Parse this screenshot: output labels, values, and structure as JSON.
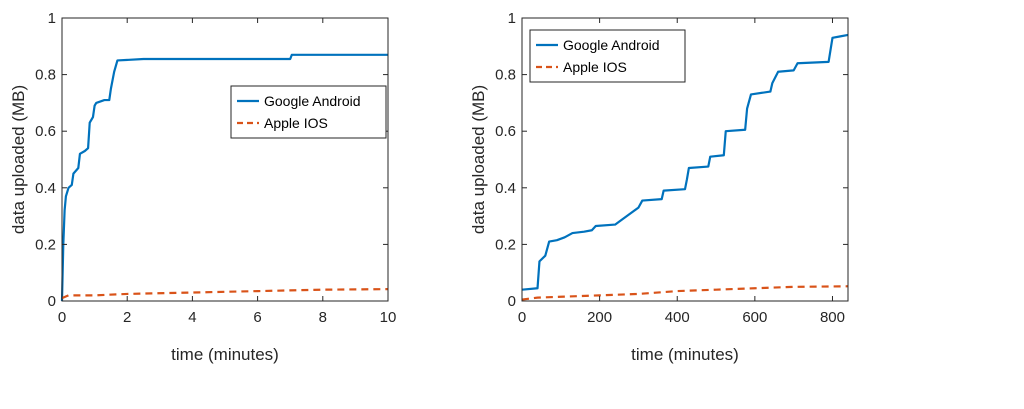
{
  "colors": {
    "android": "#0072BD",
    "ios": "#D95319",
    "axis": "#262626"
  },
  "chart_data": [
    {
      "type": "line",
      "xlabel": "time (minutes)",
      "ylabel": "data uploaded (MB)",
      "xlim": [
        0,
        10
      ],
      "ylim": [
        0,
        1
      ],
      "xticks": [
        "0",
        "2",
        "4",
        "6",
        "8",
        "10"
      ],
      "yticks": [
        "0",
        "0.2",
        "0.4",
        "0.6",
        "0.8",
        "1"
      ],
      "grid": false,
      "legend_position": "center-right",
      "series": [
        {
          "name": "Google Android",
          "line_style": "solid",
          "color": "#0072BD",
          "points": [
            [
              0,
              0
            ],
            [
              0.04,
              0.2
            ],
            [
              0.08,
              0.32
            ],
            [
              0.12,
              0.37
            ],
            [
              0.2,
              0.4
            ],
            [
              0.3,
              0.41
            ],
            [
              0.35,
              0.45
            ],
            [
              0.5,
              0.47
            ],
            [
              0.55,
              0.52
            ],
            [
              0.7,
              0.53
            ],
            [
              0.8,
              0.54
            ],
            [
              0.85,
              0.63
            ],
            [
              0.95,
              0.65
            ],
            [
              1.0,
              0.69
            ],
            [
              1.05,
              0.7
            ],
            [
              1.3,
              0.71
            ],
            [
              1.45,
              0.71
            ],
            [
              1.5,
              0.75
            ],
            [
              1.6,
              0.81
            ],
            [
              1.7,
              0.85
            ],
            [
              2.5,
              0.855
            ],
            [
              7.0,
              0.855
            ],
            [
              7.05,
              0.87
            ],
            [
              10,
              0.87
            ]
          ]
        },
        {
          "name": "Apple IOS",
          "line_style": "dashed",
          "color": "#D95319",
          "points": [
            [
              0,
              0.01
            ],
            [
              0.2,
              0.02
            ],
            [
              1,
              0.02
            ],
            [
              2,
              0.025
            ],
            [
              4,
              0.03
            ],
            [
              6,
              0.035
            ],
            [
              8,
              0.04
            ],
            [
              10,
              0.042
            ]
          ]
        }
      ]
    },
    {
      "type": "line",
      "xlabel": "time (minutes)",
      "ylabel": "data uploaded (MB)",
      "xlim": [
        0,
        840
      ],
      "ylim": [
        0,
        1
      ],
      "xticks": [
        "0",
        "200",
        "400",
        "600",
        "800"
      ],
      "yticks": [
        "0",
        "0.2",
        "0.4",
        "0.6",
        "0.8",
        "1"
      ],
      "grid": false,
      "legend_position": "top-left",
      "series": [
        {
          "name": "Google Android",
          "line_style": "solid",
          "color": "#0072BD",
          "points": [
            [
              0,
              0.04
            ],
            [
              40,
              0.045
            ],
            [
              45,
              0.14
            ],
            [
              60,
              0.16
            ],
            [
              70,
              0.21
            ],
            [
              90,
              0.215
            ],
            [
              110,
              0.225
            ],
            [
              130,
              0.24
            ],
            [
              160,
              0.245
            ],
            [
              180,
              0.25
            ],
            [
              190,
              0.265
            ],
            [
              240,
              0.27
            ],
            [
              250,
              0.28
            ],
            [
              280,
              0.31
            ],
            [
              300,
              0.33
            ],
            [
              310,
              0.355
            ],
            [
              360,
              0.36
            ],
            [
              365,
              0.39
            ],
            [
              420,
              0.395
            ],
            [
              425,
              0.43
            ],
            [
              430,
              0.47
            ],
            [
              480,
              0.475
            ],
            [
              485,
              0.51
            ],
            [
              520,
              0.515
            ],
            [
              525,
              0.6
            ],
            [
              575,
              0.605
            ],
            [
              580,
              0.68
            ],
            [
              590,
              0.73
            ],
            [
              640,
              0.74
            ],
            [
              645,
              0.77
            ],
            [
              660,
              0.81
            ],
            [
              700,
              0.815
            ],
            [
              710,
              0.84
            ],
            [
              790,
              0.845
            ],
            [
              800,
              0.93
            ],
            [
              820,
              0.935
            ],
            [
              840,
              0.94
            ]
          ]
        },
        {
          "name": "Apple IOS",
          "line_style": "dashed",
          "color": "#D95319",
          "points": [
            [
              0,
              0.005
            ],
            [
              40,
              0.012
            ],
            [
              100,
              0.015
            ],
            [
              200,
              0.02
            ],
            [
              300,
              0.025
            ],
            [
              400,
              0.035
            ],
            [
              500,
              0.04
            ],
            [
              600,
              0.045
            ],
            [
              700,
              0.05
            ],
            [
              840,
              0.052
            ]
          ]
        }
      ]
    }
  ]
}
